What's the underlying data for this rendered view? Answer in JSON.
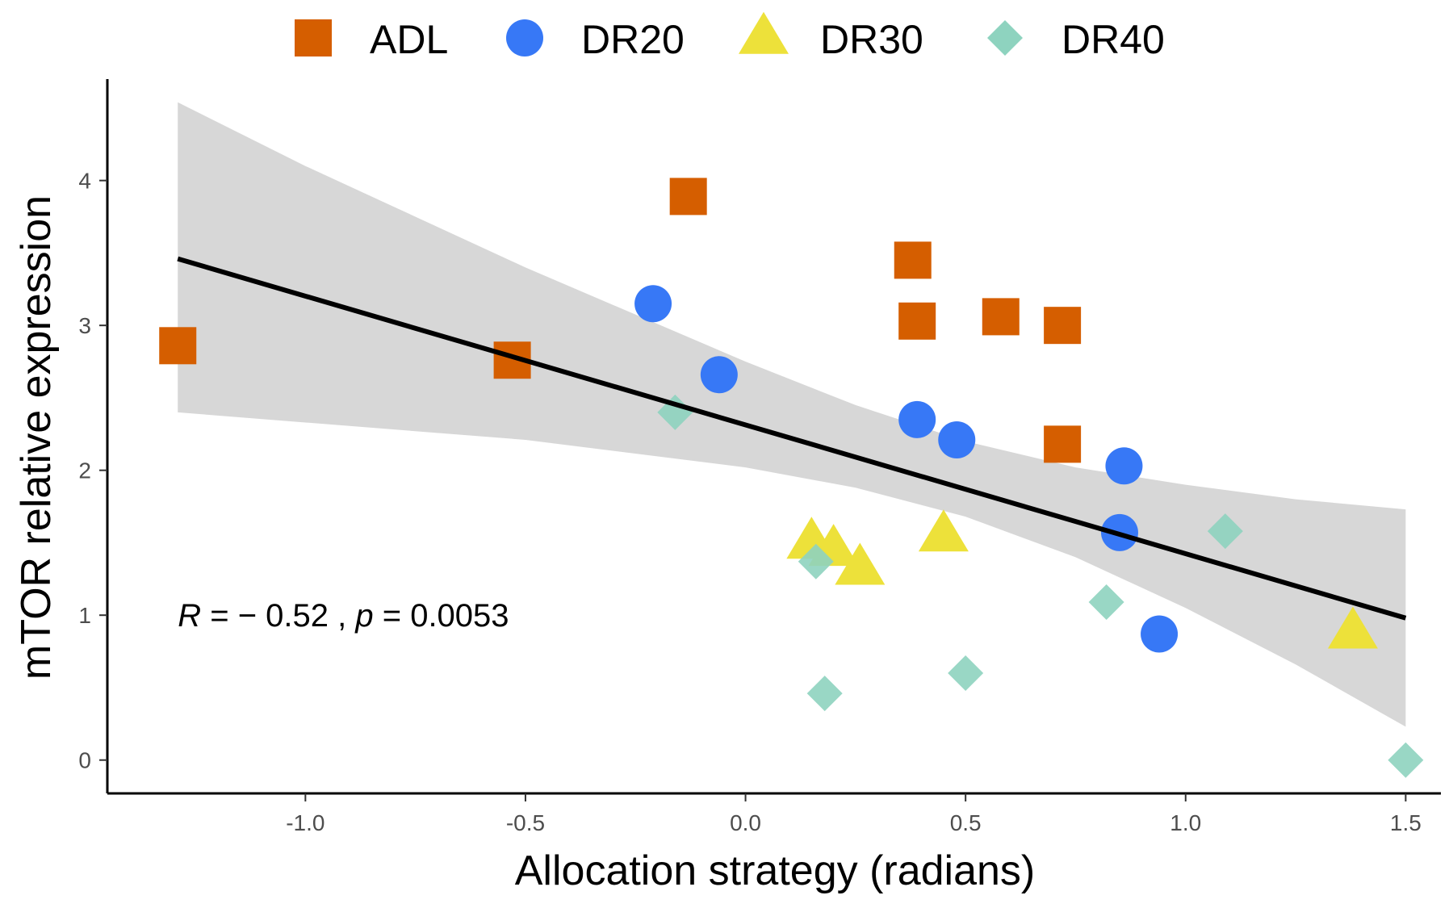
{
  "chart_data": {
    "type": "scatter",
    "xlabel": "Allocation strategy (radians)",
    "ylabel": "mTOR relative expression",
    "xlim": [
      -1.45,
      1.58
    ],
    "ylim": [
      -0.23,
      4.7
    ],
    "x_ticks": [
      -1.0,
      -0.5,
      0.0,
      0.5,
      1.0,
      1.5
    ],
    "x_tick_labels": [
      "-1.0",
      "-0.5",
      "0.0",
      "0.5",
      "1.0",
      "1.5"
    ],
    "y_ticks": [
      0,
      1,
      2,
      3,
      4
    ],
    "y_tick_labels": [
      "0",
      "1",
      "2",
      "3",
      "4"
    ],
    "grid": false,
    "legend_position": "top",
    "series": [
      {
        "name": "ADL",
        "marker": "square",
        "color": "#D55E00",
        "points": [
          {
            "x": -1.29,
            "y": 2.86
          },
          {
            "x": -0.53,
            "y": 2.76
          },
          {
            "x": -0.13,
            "y": 3.89
          },
          {
            "x": 0.38,
            "y": 3.45
          },
          {
            "x": 0.39,
            "y": 3.03
          },
          {
            "x": 0.58,
            "y": 3.06
          },
          {
            "x": 0.72,
            "y": 3.0
          },
          {
            "x": 0.72,
            "y": 2.18
          }
        ]
      },
      {
        "name": "DR20",
        "marker": "circle",
        "color": "#3778F6",
        "points": [
          {
            "x": -0.21,
            "y": 3.15
          },
          {
            "x": -0.06,
            "y": 2.66
          },
          {
            "x": 0.39,
            "y": 2.35
          },
          {
            "x": 0.48,
            "y": 2.21
          },
          {
            "x": 0.86,
            "y": 2.03
          },
          {
            "x": 0.85,
            "y": 1.57
          },
          {
            "x": 0.94,
            "y": 0.87
          }
        ]
      },
      {
        "name": "DR30",
        "marker": "triangle",
        "color": "#EDE13A",
        "points": [
          {
            "x": 0.15,
            "y": 1.5
          },
          {
            "x": 0.2,
            "y": 1.45
          },
          {
            "x": 0.26,
            "y": 1.32
          },
          {
            "x": 0.45,
            "y": 1.55
          },
          {
            "x": 1.38,
            "y": 0.88
          }
        ]
      },
      {
        "name": "DR40",
        "marker": "diamond",
        "color": "#8ED3BF",
        "points": [
          {
            "x": -0.16,
            "y": 2.4
          },
          {
            "x": 0.16,
            "y": 1.37
          },
          {
            "x": 0.18,
            "y": 0.46
          },
          {
            "x": 0.5,
            "y": 0.6
          },
          {
            "x": 0.82,
            "y": 1.09
          },
          {
            "x": 1.09,
            "y": 1.58
          },
          {
            "x": 1.5,
            "y": 0.0
          }
        ]
      }
    ],
    "regression": {
      "x_range": [
        -1.29,
        1.5
      ],
      "line_color": "#000000",
      "ribbon_color": "#BEBEBE",
      "line": [
        {
          "x": -1.29,
          "y": 3.46
        },
        {
          "x": 1.5,
          "y": 0.98
        }
      ],
      "ci_upper": [
        {
          "x": -1.29,
          "y": 4.54
        },
        {
          "x": -1.0,
          "y": 4.1
        },
        {
          "x": -0.5,
          "y": 3.4
        },
        {
          "x": 0.0,
          "y": 2.75
        },
        {
          "x": 0.25,
          "y": 2.45
        },
        {
          "x": 0.5,
          "y": 2.2
        },
        {
          "x": 0.75,
          "y": 2.02
        },
        {
          "x": 1.0,
          "y": 1.9
        },
        {
          "x": 1.25,
          "y": 1.8
        },
        {
          "x": 1.5,
          "y": 1.73
        }
      ],
      "ci_lower": [
        {
          "x": -1.29,
          "y": 2.4
        },
        {
          "x": -1.0,
          "y": 2.33
        },
        {
          "x": -0.5,
          "y": 2.21
        },
        {
          "x": 0.0,
          "y": 2.02
        },
        {
          "x": 0.25,
          "y": 1.88
        },
        {
          "x": 0.5,
          "y": 1.68
        },
        {
          "x": 0.75,
          "y": 1.4
        },
        {
          "x": 1.0,
          "y": 1.05
        },
        {
          "x": 1.25,
          "y": 0.66
        },
        {
          "x": 1.5,
          "y": 0.23
        }
      ]
    },
    "annotation": {
      "x": -1.29,
      "y": 1.0,
      "r_symbol": "R",
      "r_text": " = − 0.52 , ",
      "p_symbol": "p",
      "p_text": " = 0.0053"
    }
  }
}
